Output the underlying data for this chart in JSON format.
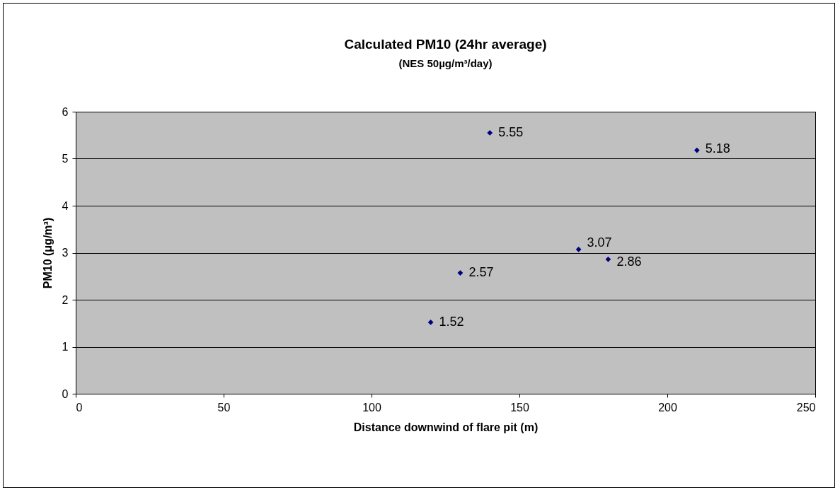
{
  "chart_data": {
    "type": "scatter",
    "title": "Calculated PM10 (24hr average)",
    "subtitle": "(NES 50µg/m³/day)",
    "xlabel": "Distance downwind of flare pit (m)",
    "ylabel": "PM10 (μg/m³)",
    "x": [
      120,
      130,
      140,
      170,
      180,
      210
    ],
    "series": [
      {
        "color": "#000080",
        "values": [
          1.52,
          2.57,
          5.55,
          3.07,
          2.86,
          5.18
        ]
      }
    ],
    "xlim": [
      0,
      250
    ],
    "xticks": [
      0,
      50,
      100,
      150,
      200,
      250
    ],
    "ylim": [
      0,
      6
    ],
    "yticks": [
      0,
      1,
      2,
      3,
      4,
      5,
      6
    ],
    "grid": "y",
    "marker": "diamond",
    "data_labels": true
  }
}
